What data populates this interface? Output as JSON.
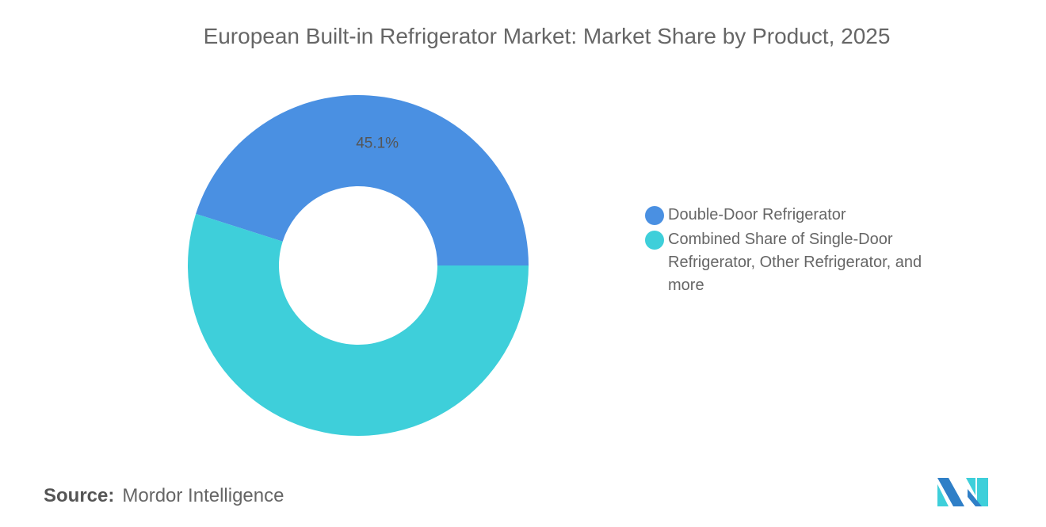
{
  "chart_data": {
    "type": "pie",
    "donut": true,
    "title": "European Built-in Refrigerator Market: Market Share by Product, 2025",
    "slices": [
      {
        "label": "Double-Door Refrigerator",
        "value": 45.1,
        "display": "45.1%",
        "color": "#4A90E2"
      },
      {
        "label": "Combined Share of Single-Door Refrigerator, Other Refrigerator, and more",
        "value": 54.9,
        "display": "",
        "color": "#3ECFDA"
      }
    ],
    "legend_position": "right"
  },
  "source": {
    "label": "Source:",
    "value": "Mordor Intelligence"
  },
  "logo": {
    "text": "Mordor Intelligence logo"
  }
}
